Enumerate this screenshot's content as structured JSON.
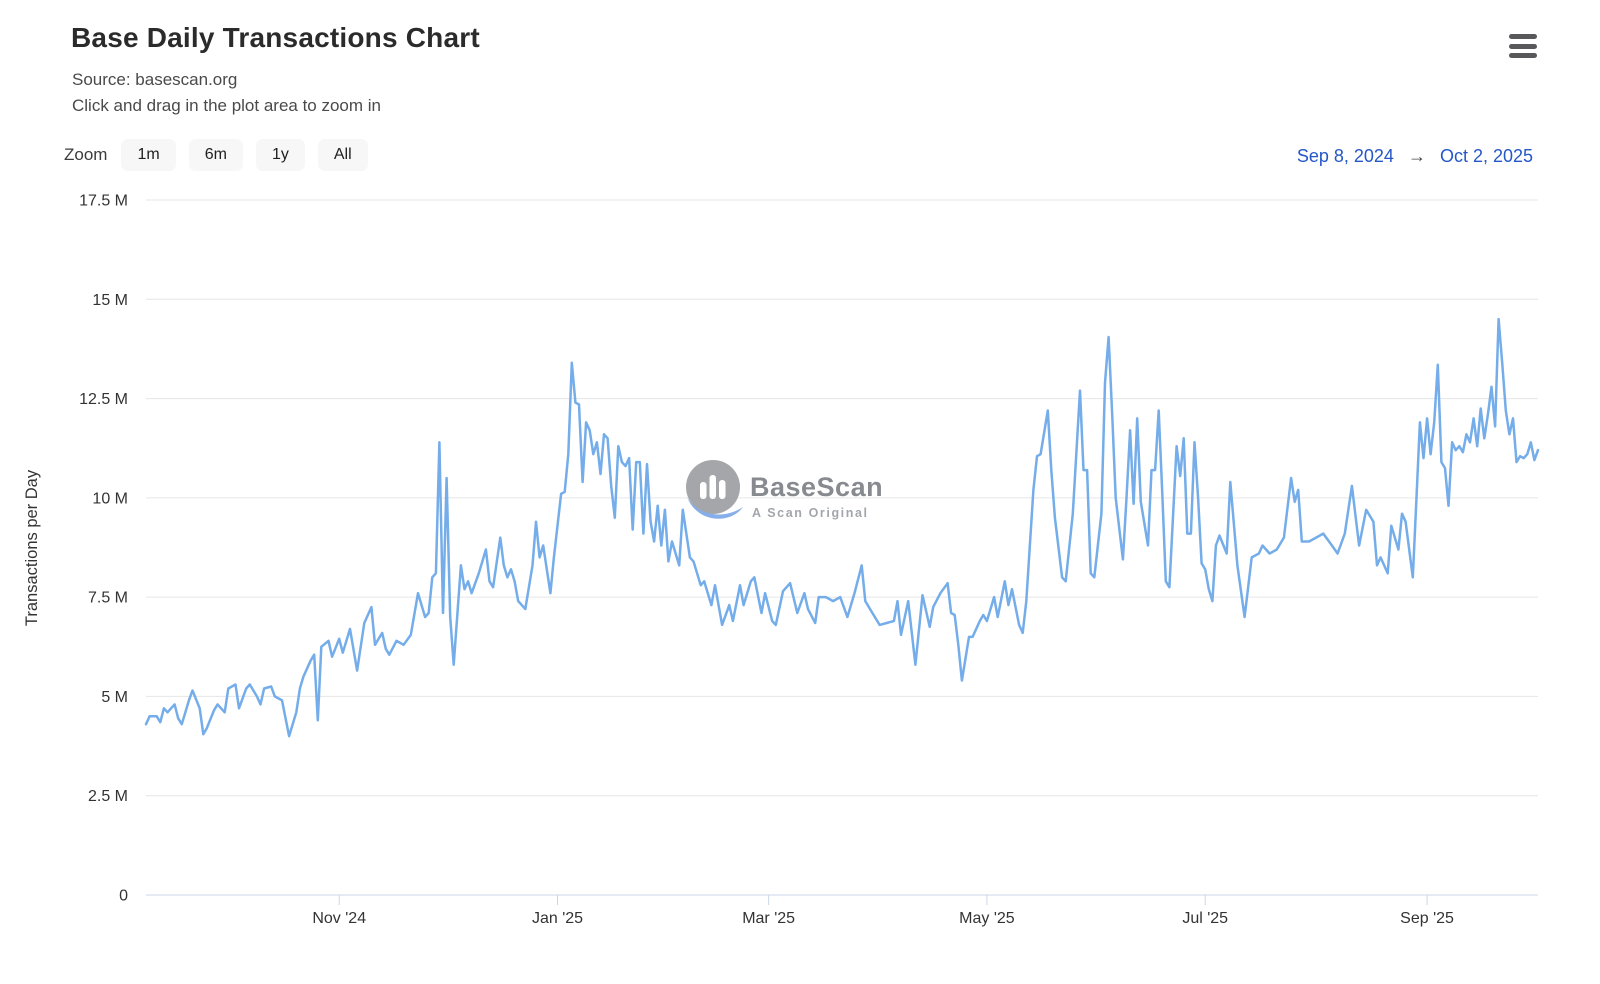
{
  "header": {
    "title": "Base Daily Transactions Chart",
    "subtitle_line1": "Source: basescan.org",
    "subtitle_line2": "Click and drag in the plot area to zoom in"
  },
  "toolbar": {
    "zoom_label": "Zoom",
    "zoom_buttons": [
      "1m",
      "6m",
      "1y",
      "All"
    ],
    "range_start": "Sep 8, 2024",
    "range_arrow": "→",
    "range_end": "Oct 2, 2025"
  },
  "watermark": {
    "brand": "BaseScan",
    "tagline": "A Scan Original"
  },
  "colors": {
    "accent_blue": "#2557c7",
    "line": "#74ade9",
    "grid": "#e6e6e6",
    "axis_line": "#ccd6eb",
    "button_bg": "#f7f7f7",
    "text_dark": "#333333"
  },
  "chart_data": {
    "type": "line",
    "title": "Base Daily Transactions Chart",
    "xlabel": "",
    "ylabel": "Transactions per Day",
    "x_axis_type": "datetime",
    "x_range": [
      "Sep 8, 2024",
      "Oct 2, 2025"
    ],
    "x_total_days": 389,
    "ylim": [
      0,
      17.5
    ],
    "y_unit": "M",
    "grid": true,
    "legend": "none",
    "x_ticks": [
      {
        "day": 54,
        "label": "Nov '24"
      },
      {
        "day": 115,
        "label": "Jan '25"
      },
      {
        "day": 174,
        "label": "Mar '25"
      },
      {
        "day": 235,
        "label": "May '25"
      },
      {
        "day": 296,
        "label": "Jul '25"
      },
      {
        "day": 358,
        "label": "Sep '25"
      }
    ],
    "y_ticks": [
      {
        "v": 0,
        "label": "0"
      },
      {
        "v": 2.5,
        "label": "2.5 M"
      },
      {
        "v": 5,
        "label": "5 M"
      },
      {
        "v": 7.5,
        "label": "7.5 M"
      },
      {
        "v": 10,
        "label": "10 M"
      },
      {
        "v": 12.5,
        "label": "12.5 M"
      },
      {
        "v": 15,
        "label": "15 M"
      },
      {
        "v": 17.5,
        "label": "17.5 M"
      }
    ],
    "series": [
      {
        "name": "Transactions per Day",
        "color": "#74ade9",
        "points": [
          [
            0,
            4.3
          ],
          [
            1,
            4.5
          ],
          [
            3,
            4.5
          ],
          [
            4,
            4.35
          ],
          [
            5,
            4.7
          ],
          [
            6,
            4.6
          ],
          [
            8,
            4.8
          ],
          [
            9,
            4.45
          ],
          [
            10,
            4.3
          ],
          [
            12,
            4.9
          ],
          [
            13,
            5.15
          ],
          [
            15,
            4.7
          ],
          [
            16,
            4.05
          ],
          [
            17,
            4.2
          ],
          [
            19,
            4.65
          ],
          [
            20,
            4.8
          ],
          [
            22,
            4.6
          ],
          [
            23,
            5.2
          ],
          [
            25,
            5.3
          ],
          [
            26,
            4.7
          ],
          [
            28,
            5.2
          ],
          [
            29,
            5.3
          ],
          [
            31,
            5.0
          ],
          [
            32,
            4.8
          ],
          [
            33,
            5.2
          ],
          [
            35,
            5.25
          ],
          [
            36,
            5.0
          ],
          [
            38,
            4.9
          ],
          [
            40,
            4.0
          ],
          [
            42,
            4.6
          ],
          [
            43,
            5.2
          ],
          [
            44,
            5.5
          ],
          [
            46,
            5.9
          ],
          [
            47,
            6.05
          ],
          [
            48,
            4.4
          ],
          [
            49,
            6.25
          ],
          [
            51,
            6.4
          ],
          [
            52,
            6.0
          ],
          [
            54,
            6.45
          ],
          [
            55,
            6.1
          ],
          [
            57,
            6.7
          ],
          [
            59,
            5.65
          ],
          [
            61,
            6.85
          ],
          [
            63,
            7.25
          ],
          [
            64,
            6.3
          ],
          [
            66,
            6.6
          ],
          [
            67,
            6.2
          ],
          [
            68,
            6.05
          ],
          [
            70,
            6.4
          ],
          [
            72,
            6.3
          ],
          [
            74,
            6.55
          ],
          [
            76,
            7.6
          ],
          [
            78,
            7.0
          ],
          [
            79,
            7.1
          ],
          [
            80,
            8.0
          ],
          [
            81,
            8.1
          ],
          [
            82,
            11.4
          ],
          [
            83,
            7.1
          ],
          [
            84,
            10.5
          ],
          [
            85,
            7.0
          ],
          [
            86,
            5.8
          ],
          [
            88,
            8.3
          ],
          [
            89,
            7.7
          ],
          [
            90,
            7.9
          ],
          [
            91,
            7.6
          ],
          [
            93,
            8.1
          ],
          [
            95,
            8.7
          ],
          [
            96,
            7.9
          ],
          [
            97,
            7.75
          ],
          [
            99,
            9.0
          ],
          [
            100,
            8.3
          ],
          [
            101,
            8.0
          ],
          [
            102,
            8.2
          ],
          [
            103,
            7.9
          ],
          [
            104,
            7.4
          ],
          [
            106,
            7.2
          ],
          [
            108,
            8.3
          ],
          [
            109,
            9.4
          ],
          [
            110,
            8.5
          ],
          [
            111,
            8.8
          ],
          [
            113,
            7.6
          ],
          [
            114,
            8.5
          ],
          [
            116,
            10.1
          ],
          [
            117,
            10.15
          ],
          [
            118,
            11.1
          ],
          [
            119,
            13.4
          ],
          [
            120,
            12.4
          ],
          [
            121,
            12.35
          ],
          [
            122,
            10.4
          ],
          [
            123,
            11.9
          ],
          [
            124,
            11.7
          ],
          [
            125,
            11.1
          ],
          [
            126,
            11.4
          ],
          [
            127,
            10.6
          ],
          [
            128,
            11.6
          ],
          [
            129,
            11.5
          ],
          [
            130,
            10.3
          ],
          [
            131,
            9.5
          ],
          [
            132,
            11.3
          ],
          [
            133,
            10.9
          ],
          [
            134,
            10.8
          ],
          [
            135,
            11.0
          ],
          [
            136,
            9.2
          ],
          [
            137,
            10.9
          ],
          [
            138,
            10.9
          ],
          [
            139,
            9.1
          ],
          [
            140,
            10.85
          ],
          [
            141,
            9.4
          ],
          [
            142,
            8.9
          ],
          [
            143,
            9.8
          ],
          [
            144,
            8.8
          ],
          [
            145,
            9.7
          ],
          [
            146,
            8.4
          ],
          [
            147,
            8.9
          ],
          [
            149,
            8.3
          ],
          [
            150,
            9.7
          ],
          [
            152,
            8.5
          ],
          [
            153,
            8.4
          ],
          [
            155,
            7.8
          ],
          [
            156,
            7.9
          ],
          [
            158,
            7.3
          ],
          [
            159,
            7.8
          ],
          [
            161,
            6.8
          ],
          [
            163,
            7.3
          ],
          [
            164,
            6.9
          ],
          [
            166,
            7.8
          ],
          [
            167,
            7.3
          ],
          [
            169,
            7.9
          ],
          [
            170,
            8.0
          ],
          [
            172,
            7.1
          ],
          [
            173,
            7.6
          ],
          [
            175,
            6.9
          ],
          [
            176,
            6.8
          ],
          [
            178,
            7.65
          ],
          [
            180,
            7.85
          ],
          [
            182,
            7.1
          ],
          [
            184,
            7.6
          ],
          [
            185,
            7.2
          ],
          [
            187,
            6.85
          ],
          [
            188,
            7.5
          ],
          [
            190,
            7.5
          ],
          [
            192,
            7.4
          ],
          [
            194,
            7.5
          ],
          [
            196,
            7.0
          ],
          [
            198,
            7.6
          ],
          [
            200,
            8.3
          ],
          [
            201,
            7.4
          ],
          [
            203,
            7.1
          ],
          [
            205,
            6.8
          ],
          [
            207,
            6.85
          ],
          [
            209,
            6.9
          ],
          [
            210,
            7.4
          ],
          [
            211,
            6.55
          ],
          [
            213,
            7.4
          ],
          [
            215,
            5.8
          ],
          [
            217,
            7.55
          ],
          [
            219,
            6.75
          ],
          [
            220,
            7.25
          ],
          [
            222,
            7.6
          ],
          [
            224,
            7.85
          ],
          [
            225,
            7.1
          ],
          [
            226,
            7.05
          ],
          [
            227,
            6.3
          ],
          [
            228,
            5.4
          ],
          [
            230,
            6.5
          ],
          [
            231,
            6.5
          ],
          [
            233,
            6.9
          ],
          [
            234,
            7.05
          ],
          [
            235,
            6.9
          ],
          [
            237,
            7.5
          ],
          [
            238,
            7.0
          ],
          [
            240,
            7.9
          ],
          [
            241,
            7.3
          ],
          [
            242,
            7.7
          ],
          [
            244,
            6.8
          ],
          [
            245,
            6.6
          ],
          [
            246,
            7.4
          ],
          [
            248,
            10.2
          ],
          [
            249,
            11.05
          ],
          [
            250,
            11.1
          ],
          [
            252,
            12.2
          ],
          [
            253,
            10.7
          ],
          [
            254,
            9.5
          ],
          [
            256,
            8.0
          ],
          [
            257,
            7.9
          ],
          [
            259,
            9.6
          ],
          [
            261,
            12.7
          ],
          [
            262,
            10.7
          ],
          [
            263,
            10.7
          ],
          [
            264,
            8.1
          ],
          [
            265,
            8.0
          ],
          [
            267,
            9.6
          ],
          [
            268,
            12.9
          ],
          [
            269,
            14.05
          ],
          [
            270,
            12.1
          ],
          [
            271,
            10.0
          ],
          [
            273,
            8.45
          ],
          [
            274,
            10.0
          ],
          [
            275,
            11.7
          ],
          [
            276,
            9.85
          ],
          [
            277,
            12.0
          ],
          [
            278,
            9.9
          ],
          [
            280,
            8.8
          ],
          [
            281,
            10.7
          ],
          [
            282,
            10.7
          ],
          [
            283,
            12.2
          ],
          [
            284,
            10.1
          ],
          [
            285,
            7.9
          ],
          [
            286,
            7.75
          ],
          [
            288,
            11.3
          ],
          [
            289,
            10.55
          ],
          [
            290,
            11.5
          ],
          [
            291,
            9.1
          ],
          [
            292,
            9.1
          ],
          [
            293,
            11.4
          ],
          [
            294,
            10.0
          ],
          [
            295,
            8.35
          ],
          [
            296,
            8.2
          ],
          [
            297,
            7.7
          ],
          [
            298,
            7.4
          ],
          [
            299,
            8.8
          ],
          [
            300,
            9.05
          ],
          [
            302,
            8.6
          ],
          [
            303,
            10.4
          ],
          [
            305,
            8.3
          ],
          [
            307,
            7.0
          ],
          [
            309,
            8.5
          ],
          [
            311,
            8.6
          ],
          [
            312,
            8.8
          ],
          [
            314,
            8.6
          ],
          [
            316,
            8.7
          ],
          [
            318,
            9.0
          ],
          [
            320,
            10.5
          ],
          [
            321,
            9.9
          ],
          [
            322,
            10.2
          ],
          [
            323,
            8.9
          ],
          [
            325,
            8.9
          ],
          [
            327,
            9.0
          ],
          [
            329,
            9.1
          ],
          [
            331,
            8.85
          ],
          [
            333,
            8.6
          ],
          [
            335,
            9.1
          ],
          [
            337,
            10.3
          ],
          [
            339,
            8.8
          ],
          [
            341,
            9.7
          ],
          [
            343,
            9.4
          ],
          [
            344,
            8.3
          ],
          [
            345,
            8.5
          ],
          [
            347,
            8.1
          ],
          [
            348,
            9.3
          ],
          [
            350,
            8.7
          ],
          [
            351,
            9.6
          ],
          [
            352,
            9.4
          ],
          [
            354,
            8.0
          ],
          [
            355,
            9.9
          ],
          [
            356,
            11.9
          ],
          [
            357,
            11.0
          ],
          [
            358,
            12.0
          ],
          [
            359,
            11.1
          ],
          [
            360,
            11.9
          ],
          [
            361,
            13.35
          ],
          [
            362,
            10.9
          ],
          [
            363,
            10.75
          ],
          [
            364,
            9.8
          ],
          [
            365,
            11.4
          ],
          [
            366,
            11.2
          ],
          [
            367,
            11.3
          ],
          [
            368,
            11.15
          ],
          [
            369,
            11.6
          ],
          [
            370,
            11.4
          ],
          [
            371,
            12.0
          ],
          [
            372,
            11.3
          ],
          [
            373,
            12.25
          ],
          [
            374,
            11.5
          ],
          [
            375,
            12.1
          ],
          [
            376,
            12.8
          ],
          [
            377,
            11.8
          ],
          [
            378,
            14.5
          ],
          [
            379,
            13.4
          ],
          [
            380,
            12.2
          ],
          [
            381,
            11.6
          ],
          [
            382,
            12.0
          ],
          [
            383,
            10.9
          ],
          [
            384,
            11.05
          ],
          [
            385,
            11.0
          ],
          [
            386,
            11.1
          ],
          [
            387,
            11.4
          ],
          [
            388,
            10.95
          ],
          [
            389,
            11.2
          ]
        ]
      }
    ]
  }
}
